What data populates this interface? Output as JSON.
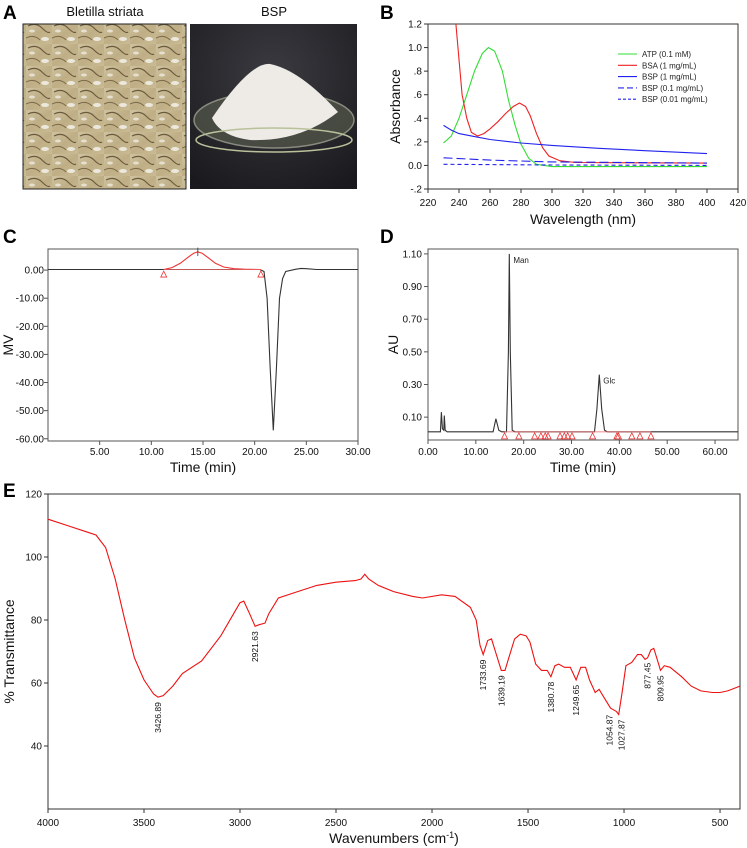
{
  "panel_labels": [
    "A",
    "B",
    "C",
    "D",
    "E"
  ],
  "panel_a": {
    "photos": [
      {
        "title": "Bletilla striata"
      },
      {
        "title": "BSP"
      }
    ]
  },
  "chart_data": [
    {
      "panel": "B",
      "type": "line",
      "xlabel": "Wavelength (nm)",
      "ylabel": "Absorbance",
      "xlim": [
        220,
        420
      ],
      "ylim": [
        -0.2,
        1.2
      ],
      "xticks": [
        220,
        240,
        260,
        280,
        300,
        320,
        340,
        360,
        380,
        400,
        420
      ],
      "yticks": [
        -0.2,
        0,
        0.2,
        0.4,
        0.6,
        0.8,
        1.0,
        1.2
      ],
      "ytick_labels": [
        "-.2",
        "0.0",
        ".2",
        ".4",
        ".6",
        ".8",
        "1.0",
        "1.2"
      ],
      "legend_position": "top-right",
      "series": [
        {
          "name": "ATP (0.1 mM)",
          "color": "#33dd33",
          "dash": "solid",
          "points": [
            [
              230,
              0.19
            ],
            [
              235,
              0.25
            ],
            [
              240,
              0.4
            ],
            [
              245,
              0.6
            ],
            [
              250,
              0.8
            ],
            [
              255,
              0.95
            ],
            [
              259,
              1.0
            ],
            [
              263,
              0.97
            ],
            [
              268,
              0.8
            ],
            [
              272,
              0.55
            ],
            [
              276,
              0.35
            ],
            [
              280,
              0.18
            ],
            [
              285,
              0.06
            ],
            [
              290,
              0.01
            ],
            [
              300,
              -0.01
            ],
            [
              400,
              -0.01
            ]
          ]
        },
        {
          "name": "BSA (1 mg/mL)",
          "color": "#ee2222",
          "dash": "solid",
          "points": [
            [
              238,
              1.2
            ],
            [
              240,
              0.9
            ],
            [
              242,
              0.6
            ],
            [
              245,
              0.4
            ],
            [
              248,
              0.28
            ],
            [
              252,
              0.25
            ],
            [
              256,
              0.27
            ],
            [
              260,
              0.31
            ],
            [
              265,
              0.37
            ],
            [
              270,
              0.44
            ],
            [
              275,
              0.5
            ],
            [
              279,
              0.53
            ],
            [
              283,
              0.5
            ],
            [
              286,
              0.42
            ],
            [
              290,
              0.27
            ],
            [
              294,
              0.15
            ],
            [
              298,
              0.08
            ],
            [
              305,
              0.04
            ],
            [
              315,
              0.025
            ],
            [
              400,
              0.02
            ]
          ]
        },
        {
          "name": "BSP (1 mg/mL)",
          "color": "#2222ee",
          "dash": "solid",
          "points": [
            [
              230,
              0.34
            ],
            [
              235,
              0.3
            ],
            [
              240,
              0.27
            ],
            [
              250,
              0.245
            ],
            [
              260,
              0.22
            ],
            [
              280,
              0.19
            ],
            [
              300,
              0.17
            ],
            [
              330,
              0.145
            ],
            [
              360,
              0.125
            ],
            [
              400,
              0.1
            ]
          ]
        },
        {
          "name": "BSP (0.1 mg/mL)",
          "color": "#2222ee",
          "dash": "long",
          "points": [
            [
              230,
              0.065
            ],
            [
              260,
              0.045
            ],
            [
              300,
              0.03
            ],
            [
              400,
              0.02
            ]
          ]
        },
        {
          "name": "BSP (0.01 mg/mL)",
          "color": "#2222ee",
          "dash": "short",
          "points": [
            [
              230,
              0.01
            ],
            [
              300,
              0.004
            ],
            [
              400,
              0.0
            ]
          ]
        }
      ]
    },
    {
      "panel": "C",
      "type": "line",
      "xlabel": "Time (min)",
      "ylabel": "MV",
      "xlim": [
        0,
        30
      ],
      "ylim": [
        -60.8,
        7.5
      ],
      "xticks": [
        5,
        10,
        15,
        20,
        25,
        30
      ],
      "xtick_labels": [
        "5.00",
        "10.00",
        "15.00",
        "20.00",
        "25.00",
        "30.00"
      ],
      "yticks": [
        0,
        -10,
        -20,
        -30,
        -40,
        -50,
        -60
      ],
      "ytick_labels": [
        "0.00",
        "-10.00",
        "-20.00",
        "-30.00",
        "-40.00",
        "-50.00",
        "-60.00"
      ],
      "series": [
        {
          "name": "signal",
          "color": "#333333",
          "dash": "solid",
          "points": [
            [
              0,
              0.2
            ],
            [
              20.5,
              0.2
            ],
            [
              20.9,
              -0.5
            ],
            [
              21.2,
              -10
            ],
            [
              21.5,
              -35
            ],
            [
              21.8,
              -57
            ],
            [
              22.1,
              -35
            ],
            [
              22.4,
              -10
            ],
            [
              22.7,
              -3
            ],
            [
              23,
              -0.5
            ],
            [
              24,
              0.3
            ],
            [
              24.5,
              0.6
            ],
            [
              25,
              0.5
            ],
            [
              26,
              0.2
            ],
            [
              30,
              0.2
            ]
          ]
        },
        {
          "name": "integrated peak",
          "color": "#ee3333",
          "dash": "solid",
          "points": [
            [
              11.2,
              0.2
            ],
            [
              12,
              0.9
            ],
            [
              12.8,
              2.4
            ],
            [
              13.5,
              4.4
            ],
            [
              14.1,
              6
            ],
            [
              14.5,
              6.5
            ],
            [
              14.9,
              6
            ],
            [
              15.5,
              4.4
            ],
            [
              16.2,
              2.4
            ],
            [
              17,
              1.1
            ],
            [
              18,
              0.5
            ],
            [
              19,
              0.3
            ],
            [
              20.6,
              0.2
            ]
          ]
        }
      ],
      "markers": [
        11.2,
        20.6
      ],
      "peak_ticks": [
        14.5
      ]
    },
    {
      "panel": "D",
      "type": "line",
      "xlabel": "Time (min)",
      "ylabel": "AU",
      "xlim": [
        0,
        64.8
      ],
      "ylim": [
        -0.04,
        1.13
      ],
      "xticks": [
        0,
        10,
        20,
        30,
        40,
        50,
        60
      ],
      "xtick_labels": [
        "0.00",
        "10.00",
        "20.00",
        "30.00",
        "40.00",
        "50.00",
        "60.00"
      ],
      "yticks": [
        0.1,
        0.3,
        0.5,
        0.7,
        0.9,
        1.1
      ],
      "ytick_labels": [
        "0.10",
        "0.30",
        "0.50",
        "0.70",
        "0.90",
        "1.10"
      ],
      "series": [
        {
          "name": "signal",
          "color": "#333333",
          "dash": "solid",
          "points": [
            [
              0,
              0.01
            ],
            [
              2.6,
              0.01
            ],
            [
              2.8,
              0.13
            ],
            [
              3.0,
              0.03
            ],
            [
              3.3,
              0.02
            ],
            [
              3.4,
              0.11
            ],
            [
              3.6,
              0.02
            ],
            [
              4,
              0.01
            ],
            [
              13.6,
              0.01
            ],
            [
              14.2,
              0.09
            ],
            [
              14.8,
              0.02
            ],
            [
              15.4,
              0.01
            ],
            [
              16.4,
              0.01
            ],
            [
              16.8,
              0.5
            ],
            [
              17.0,
              1.1
            ],
            [
              17.2,
              0.5
            ],
            [
              17.6,
              0.02
            ],
            [
              18.2,
              0.01
            ],
            [
              34.8,
              0.01
            ],
            [
              35.3,
              0.15
            ],
            [
              35.8,
              0.36
            ],
            [
              36.3,
              0.15
            ],
            [
              36.9,
              0.02
            ],
            [
              37.5,
              0.01
            ],
            [
              64.8,
              0.01
            ]
          ]
        }
      ],
      "markers": [
        16,
        19,
        22.3,
        23.6,
        24.5,
        25.1,
        27.6,
        28.5,
        29.2,
        30.1,
        34.4,
        39.5,
        39.8,
        42.6,
        44.3,
        46.6
      ],
      "annotations": [
        {
          "text": "Man",
          "x": 17.0,
          "y": 1.1
        },
        {
          "text": "Glc",
          "x": 35.8,
          "y": 0.36
        }
      ]
    },
    {
      "panel": "E",
      "type": "line",
      "xlabel": "Wavenumbers (cm-1)",
      "xlabel_main": "Wavenumbers (cm",
      "xlabel_sup": "-1",
      "xlabel_close": ")",
      "ylabel": "% Transmittance",
      "xlim": [
        4000,
        396
      ],
      "ylim": [
        20,
        120
      ],
      "xticks": [
        4000,
        3500,
        3000,
        2500,
        2000,
        1500,
        1000,
        500
      ],
      "yticks": [
        40,
        60,
        80,
        100,
        120
      ],
      "series": [
        {
          "name": "FT-IR",
          "color": "#ee1111",
          "dash": "solid",
          "points": [
            [
              4000,
              112
            ],
            [
              3900,
              110
            ],
            [
              3800,
              108
            ],
            [
              3750,
              107
            ],
            [
              3700,
              103
            ],
            [
              3650,
              93
            ],
            [
              3600,
              80
            ],
            [
              3550,
              68
            ],
            [
              3500,
              61
            ],
            [
              3450,
              56.5
            ],
            [
              3426.89,
              55.5
            ],
            [
              3400,
              56
            ],
            [
              3350,
              59
            ],
            [
              3300,
              63
            ],
            [
              3200,
              67
            ],
            [
              3100,
              75
            ],
            [
              3000,
              85.5
            ],
            [
              2980,
              86
            ],
            [
              2950,
              82
            ],
            [
              2921.63,
              78
            ],
            [
              2900,
              78.5
            ],
            [
              2870,
              79
            ],
            [
              2850,
              82
            ],
            [
              2800,
              87
            ],
            [
              2700,
              89
            ],
            [
              2600,
              91
            ],
            [
              2500,
              92
            ],
            [
              2400,
              92.5
            ],
            [
              2370,
              93
            ],
            [
              2350,
              94.5
            ],
            [
              2330,
              93
            ],
            [
              2280,
              91
            ],
            [
              2200,
              89
            ],
            [
              2100,
              87.5
            ],
            [
              2050,
              87
            ],
            [
              1950,
              88
            ],
            [
              1880,
              87.5
            ],
            [
              1800,
              84
            ],
            [
              1770,
              80
            ],
            [
              1750,
              72
            ],
            [
              1733.69,
              69
            ],
            [
              1710,
              73.5
            ],
            [
              1690,
              74
            ],
            [
              1670,
              70
            ],
            [
              1639.19,
              64
            ],
            [
              1620,
              64
            ],
            [
              1600,
              68
            ],
            [
              1570,
              74
            ],
            [
              1540,
              75.5
            ],
            [
              1510,
              75
            ],
            [
              1490,
              73
            ],
            [
              1460,
              66
            ],
            [
              1430,
              64
            ],
            [
              1400,
              64
            ],
            [
              1380.78,
              62
            ],
            [
              1360,
              65.5
            ],
            [
              1340,
              66
            ],
            [
              1310,
              65
            ],
            [
              1280,
              65
            ],
            [
              1249.65,
              61
            ],
            [
              1225,
              65
            ],
            [
              1200,
              65
            ],
            [
              1180,
              61
            ],
            [
              1150,
              57
            ],
            [
              1130,
              58
            ],
            [
              1100,
              55
            ],
            [
              1070,
              52
            ],
            [
              1054.87,
              51.5
            ],
            [
              1040,
              51
            ],
            [
              1027.87,
              50
            ],
            [
              1010,
              57
            ],
            [
              990,
              65.5
            ],
            [
              960,
              66.5
            ],
            [
              930,
              69
            ],
            [
              910,
              69
            ],
            [
              890,
              67.5
            ],
            [
              877.45,
              68
            ],
            [
              860,
              70.5
            ],
            [
              845,
              71
            ],
            [
              830,
              68
            ],
            [
              809.95,
              64
            ],
            [
              790,
              65.5
            ],
            [
              760,
              65
            ],
            [
              700,
              62
            ],
            [
              650,
              59
            ],
            [
              600,
              57.5
            ],
            [
              540,
              57
            ],
            [
              500,
              57
            ],
            [
              460,
              57.5
            ],
            [
              396,
              59
            ]
          ]
        }
      ],
      "peak_labels": [
        {
          "text": "3426.89",
          "x": 3426.89,
          "y": 55.5
        },
        {
          "text": "2921.63",
          "x": 2921.63,
          "y": 78
        },
        {
          "text": "1733.69",
          "x": 1733.69,
          "y": 69
        },
        {
          "text": "1639.19",
          "x": 1639.19,
          "y": 64
        },
        {
          "text": "1380.78",
          "x": 1380.78,
          "y": 62
        },
        {
          "text": "1249.65",
          "x": 1249.65,
          "y": 61
        },
        {
          "text": "1054.87",
          "x": 1054.87,
          "y": 51.5
        },
        {
          "text": "1027.87",
          "x": 1027.87,
          "y": 50
        },
        {
          "text": "877.45",
          "x": 877.45,
          "y": 68
        },
        {
          "text": "809.95",
          "x": 809.95,
          "y": 64
        }
      ]
    }
  ]
}
